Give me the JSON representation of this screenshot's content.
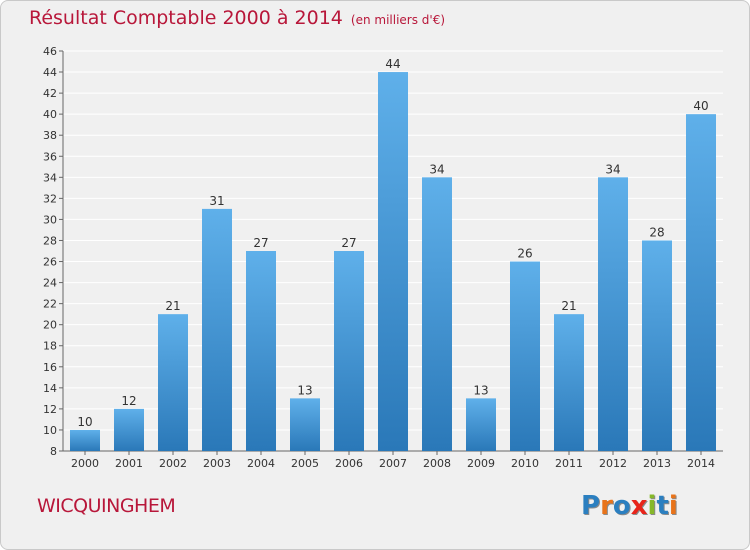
{
  "header": {
    "title": "Résultat Comptable 2000 à 2014",
    "unit": "(en milliers d'€)"
  },
  "footer": {
    "commune": "WICQUINGHEM",
    "logo_text": "Proxiti",
    "logo_colors": [
      "#2b7fc0",
      "#e8731a",
      "#2b7fc0",
      "#e8241a",
      "#86b82a",
      "#2b7fc0",
      "#e8731a"
    ]
  },
  "colors": {
    "bar_top": "#5fb0ea",
    "bar_bottom": "#2a78b8",
    "title": "#b8173a",
    "grid": "#ffffff",
    "axis_text": "#333333"
  },
  "chart_data": {
    "type": "bar",
    "title": "Résultat Comptable 2000 à 2014",
    "ylabel": "(en milliers d'€)",
    "xlabel": "",
    "categories": [
      "2000",
      "2001",
      "2002",
      "2003",
      "2004",
      "2005",
      "2006",
      "2007",
      "2008",
      "2009",
      "2010",
      "2011",
      "2012",
      "2013",
      "2014"
    ],
    "values": [
      10,
      12,
      21,
      31,
      27,
      13,
      27,
      44,
      34,
      13,
      26,
      21,
      34,
      28,
      40
    ],
    "ylim": [
      8,
      46
    ],
    "ytick_step": 2,
    "grid": true,
    "legend": "none"
  }
}
